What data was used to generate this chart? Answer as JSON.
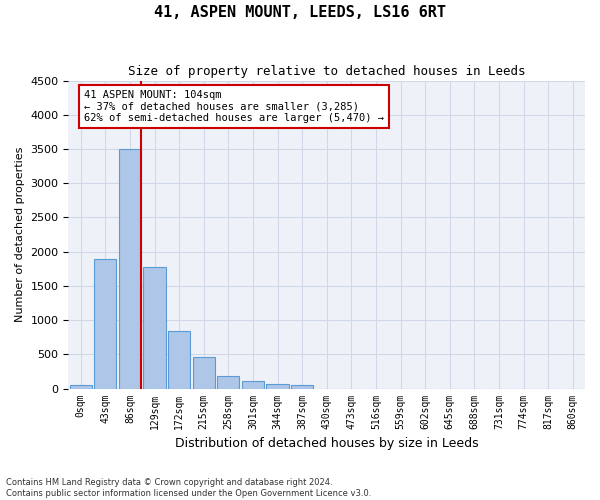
{
  "title": "41, ASPEN MOUNT, LEEDS, LS16 6RT",
  "subtitle": "Size of property relative to detached houses in Leeds",
  "xlabel": "Distribution of detached houses by size in Leeds",
  "ylabel": "Number of detached properties",
  "bar_color": "#aec6e8",
  "bar_edge_color": "#5b9bd5",
  "grid_color": "#d0d8e8",
  "background_color": "#eef2f8",
  "annotation_box_color": "#cc0000",
  "property_line_color": "#cc0000",
  "annotation_title": "41 ASPEN MOUNT: 104sqm",
  "annotation_line1": "← 37% of detached houses are smaller (3,285)",
  "annotation_line2": "62% of semi-detached houses are larger (5,470) →",
  "footer_line1": "Contains HM Land Registry data © Crown copyright and database right 2024.",
  "footer_line2": "Contains public sector information licensed under the Open Government Licence v3.0.",
  "ylim": [
    0,
    4500
  ],
  "yticks": [
    0,
    500,
    1000,
    1500,
    2000,
    2500,
    3000,
    3500,
    4000,
    4500
  ],
  "bins": [
    "0sqm",
    "43sqm",
    "86sqm",
    "129sqm",
    "172sqm",
    "215sqm",
    "258sqm",
    "301sqm",
    "344sqm",
    "387sqm",
    "430sqm",
    "473sqm",
    "516sqm",
    "559sqm",
    "602sqm",
    "645sqm",
    "688sqm",
    "731sqm",
    "774sqm",
    "817sqm",
    "860sqm"
  ],
  "values": [
    50,
    1900,
    3500,
    1775,
    840,
    455,
    185,
    105,
    60,
    45,
    0,
    0,
    0,
    0,
    0,
    0,
    0,
    0,
    0,
    0,
    0
  ],
  "property_bin_index": 2
}
